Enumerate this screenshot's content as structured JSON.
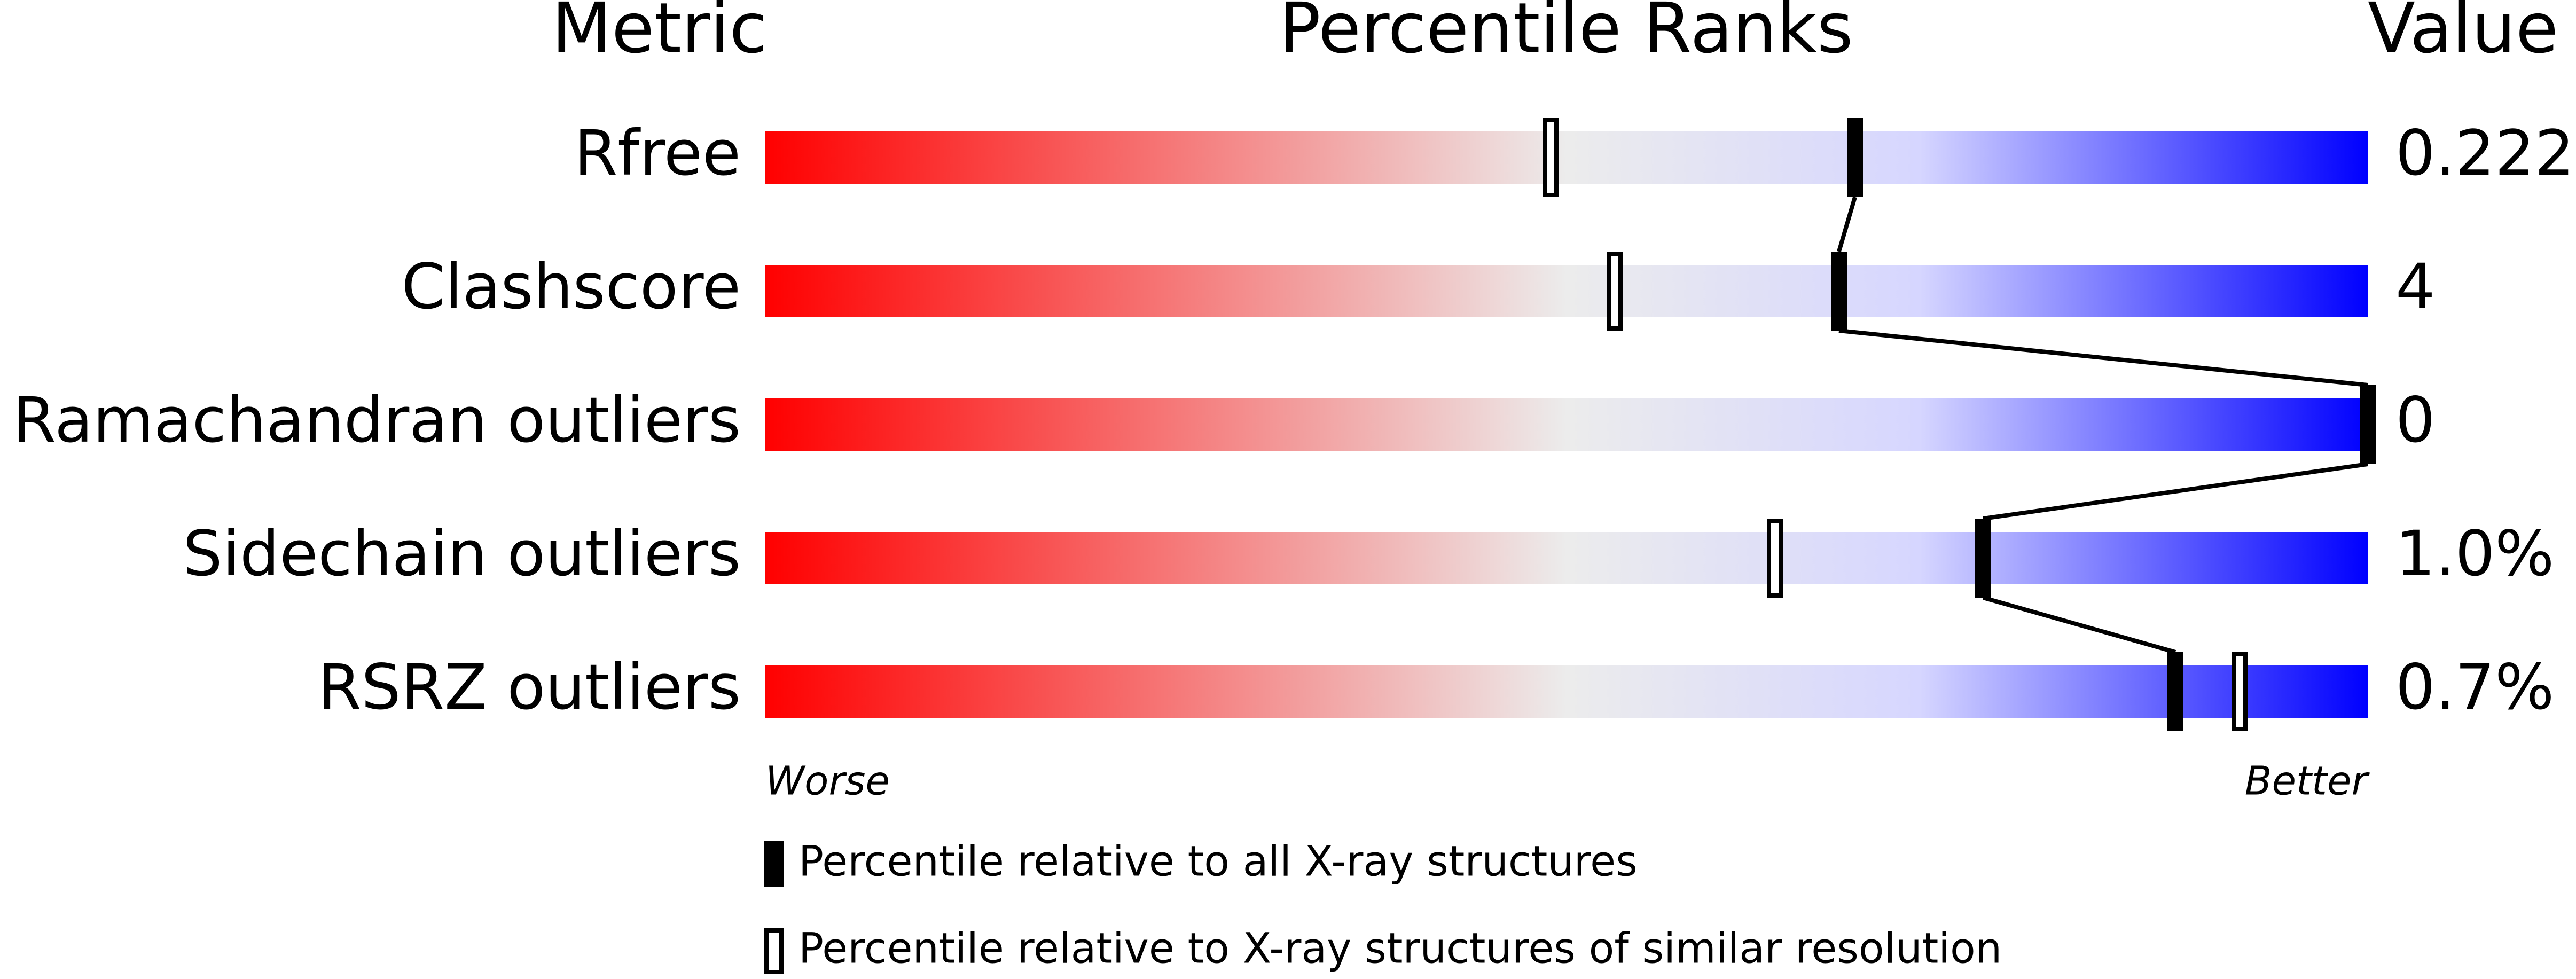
{
  "chart_data": {
    "type": "percentile",
    "headers": {
      "metric": "Metric",
      "ranks": "Percentile Ranks",
      "value": "Value"
    },
    "categories": [
      "Rfree",
      "Clashscore",
      "Ramachandran outliers",
      "Sidechain outliers",
      "RSRZ outliers"
    ],
    "metric_values": [
      "0.222",
      "4",
      "0",
      "1.0%",
      "0.7%"
    ],
    "series": [
      {
        "name": "Percentile relative to all X-ray structures",
        "color": "#000000",
        "values": [
          68,
          67,
          100,
          76,
          88
        ]
      },
      {
        "name": "Percentile relative to X-ray structures of similar resolution",
        "color": "#ffffff",
        "values": [
          49,
          53,
          null,
          63,
          92
        ]
      }
    ],
    "xlim": [
      0,
      100
    ],
    "axis_labels": {
      "low": "Worse",
      "high": "Better"
    }
  }
}
